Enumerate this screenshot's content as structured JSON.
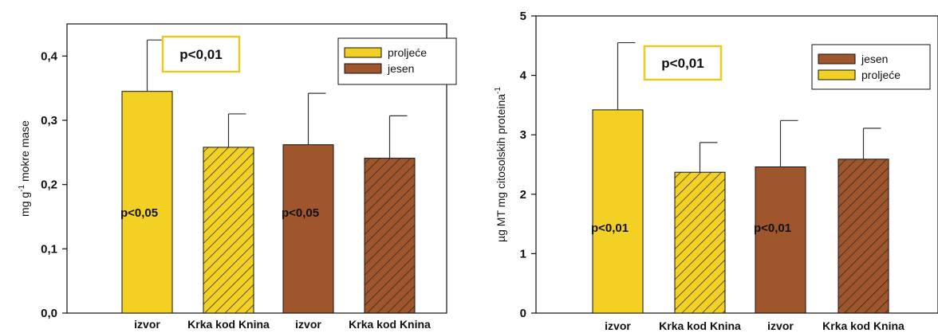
{
  "colors": {
    "proljece": "#f2d024",
    "jesen": "#a0562c",
    "sig_box_border": "#e6cc1e"
  },
  "chart_data": [
    {
      "type": "bar",
      "ylabel_main": "mg g",
      "ylabel_sup": "-1",
      "ylabel_rest": " mokre mase",
      "ylim": [
        0,
        0.45
      ],
      "yticks": [
        0.0,
        0.1,
        0.2,
        0.3,
        0.4
      ],
      "ytick_labels": [
        "0,0",
        "0,1",
        "0,2",
        "0,3",
        "0,4"
      ],
      "categories": [
        "izvor",
        "Krka kod Knina",
        "izvor",
        "Krka kod Knina"
      ],
      "bars": [
        {
          "value": 0.345,
          "error": 0.08,
          "season": "proljece",
          "hatched": false,
          "label": "p<0,05"
        },
        {
          "value": 0.258,
          "error": 0.052,
          "season": "proljece",
          "hatched": true,
          "label": ""
        },
        {
          "value": 0.262,
          "error": 0.08,
          "season": "jesen",
          "hatched": false,
          "label": "p<0,05"
        },
        {
          "value": 0.241,
          "error": 0.066,
          "season": "jesen",
          "hatched": true,
          "label": ""
        }
      ],
      "significance_box": "p<0,01",
      "legend": [
        {
          "name": "proljeće",
          "season": "proljece"
        },
        {
          "name": "jesen",
          "season": "jesen"
        }
      ]
    },
    {
      "type": "bar",
      "ylabel_main": "µg MT mg citosolskih proteina",
      "ylabel_sup": "-1",
      "ylabel_rest": "",
      "ylim": [
        0,
        5
      ],
      "yticks": [
        0,
        1,
        2,
        3,
        4,
        5
      ],
      "ytick_labels": [
        "0",
        "1",
        "2",
        "3",
        "4",
        "5"
      ],
      "categories": [
        "izvor",
        "Krka kod Knina",
        "izvor",
        "Krka kod Knina"
      ],
      "bars": [
        {
          "value": 3.42,
          "error": 1.13,
          "season": "proljece",
          "hatched": false,
          "label": "p<0,01"
        },
        {
          "value": 2.37,
          "error": 0.5,
          "season": "proljece",
          "hatched": true,
          "label": ""
        },
        {
          "value": 2.46,
          "error": 0.78,
          "season": "jesen",
          "hatched": false,
          "label": "p<0,01"
        },
        {
          "value": 2.59,
          "error": 0.52,
          "season": "jesen",
          "hatched": true,
          "label": ""
        }
      ],
      "significance_box": "p<0,01",
      "legend": [
        {
          "name": "jesen",
          "season": "jesen"
        },
        {
          "name": "proljeće",
          "season": "proljece"
        }
      ]
    }
  ]
}
